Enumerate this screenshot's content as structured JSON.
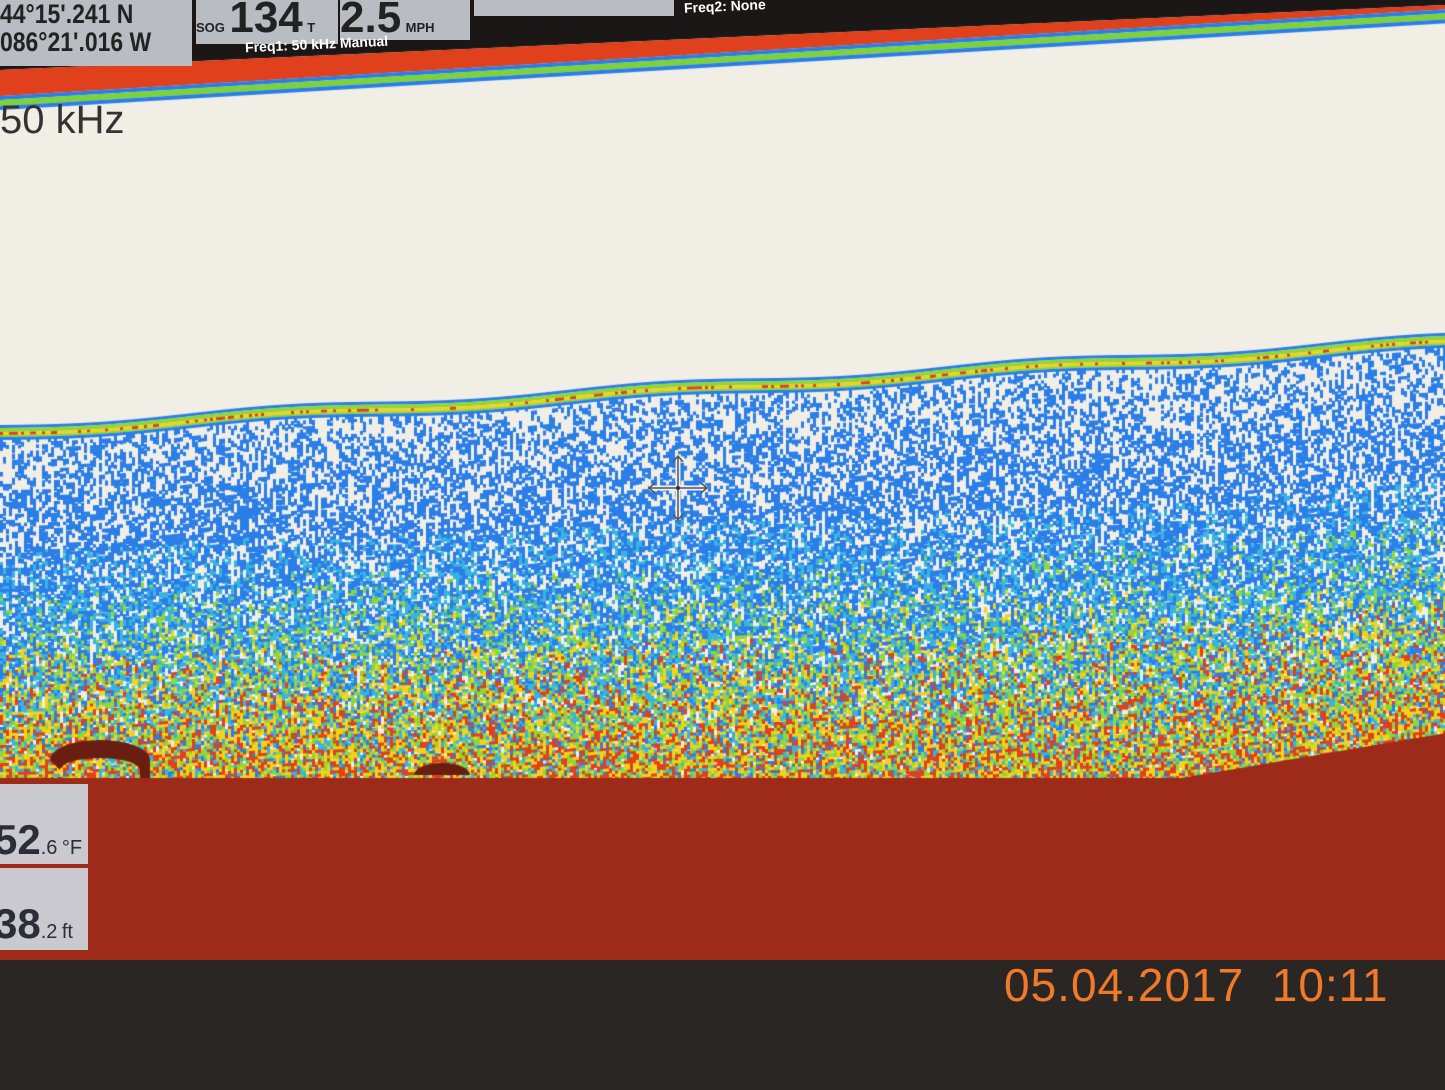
{
  "header": {
    "latitude": "44°15'.241 N",
    "longitude": "086°21'.016 W",
    "sog_label": "SOG",
    "sog_value": "134",
    "t_label": "T",
    "speed_value": "2.5",
    "speed_unit": "MPH",
    "freq1": "Freq1: 50 kHz Manual",
    "freq2": "Freq2: None"
  },
  "sonar": {
    "channel_label": "50 kHz",
    "colors": {
      "bottom": "#9e2a1a",
      "strong": "#e0401c",
      "mid": "#f2d21c",
      "weak": "#2a7ee8",
      "background": "#f1eee6"
    }
  },
  "panels": {
    "water_temp": {
      "value": "52",
      "decimal": ".6",
      "unit": "°F"
    },
    "depth": {
      "value": "38",
      "decimal": ".2",
      "unit": "ft"
    }
  },
  "photo_timestamp": "05.04.2017  10:11",
  "cursor_icon": "move-crosshair-icon"
}
